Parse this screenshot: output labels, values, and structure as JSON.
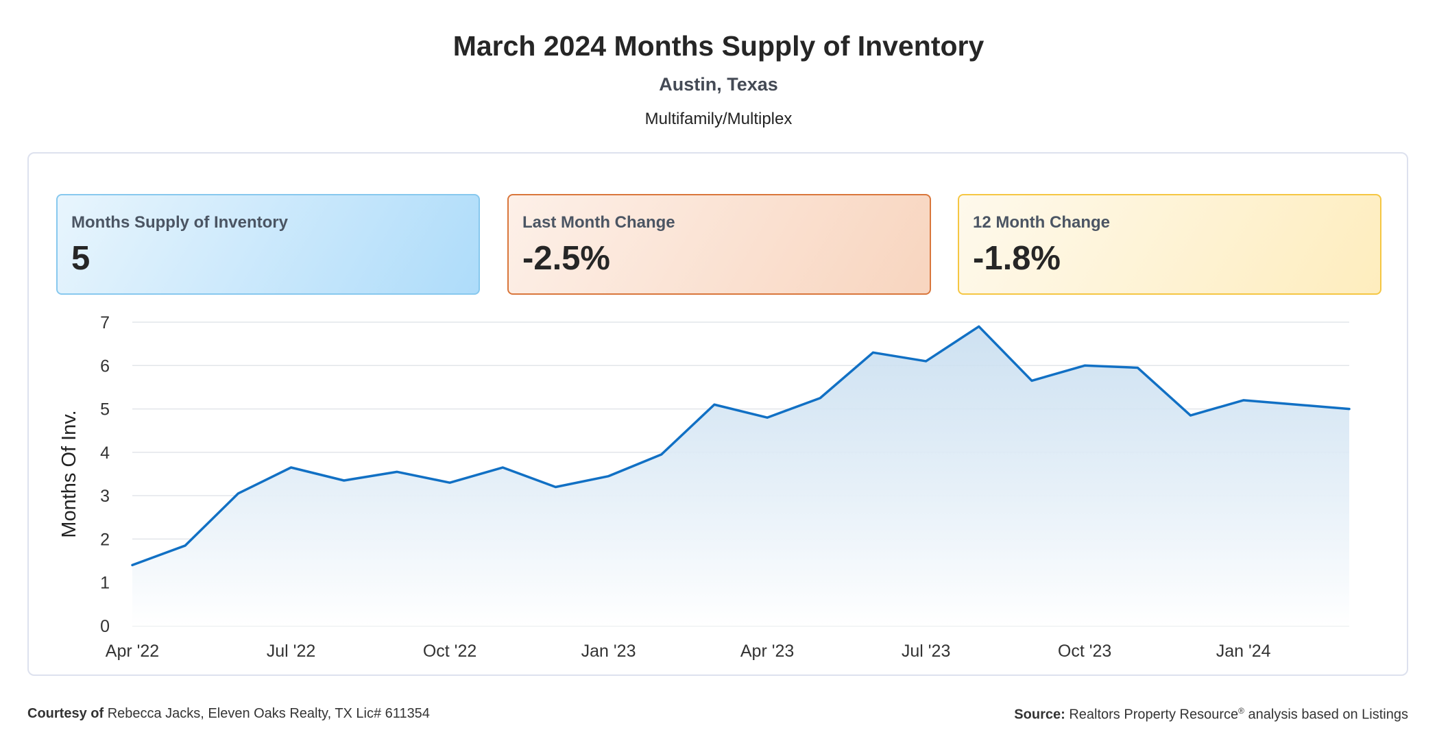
{
  "header": {
    "title": "March 2024 Months Supply of Inventory",
    "subtitle": "Austin, Texas",
    "category": "Multifamily/Multiplex"
  },
  "cards": [
    {
      "label": "Months Supply of Inventory",
      "value": "5"
    },
    {
      "label": "Last Month Change",
      "value": "-2.5%"
    },
    {
      "label": "12 Month Change",
      "value": "-1.8%"
    }
  ],
  "colors": {
    "line": "#1170c4",
    "grid": "#e2e5ea",
    "area_top": "#c5dcef",
    "area_bottom": "#ffffff"
  },
  "chart_data": {
    "type": "area",
    "title": "",
    "xlabel": "",
    "ylabel": "Months Of Inv.",
    "ylim": [
      0,
      7
    ],
    "yticks": [
      "0",
      "1",
      "2",
      "3",
      "4",
      "5",
      "6",
      "7"
    ],
    "grid": true,
    "x": [
      "Apr '22",
      "May '22",
      "Jun '22",
      "Jul '22",
      "Aug '22",
      "Sep '22",
      "Oct '22",
      "Nov '22",
      "Dec '22",
      "Jan '23",
      "Feb '23",
      "Mar '23",
      "Apr '23",
      "May '23",
      "Jun '23",
      "Jul '23",
      "Aug '23",
      "Sep '23",
      "Oct '23",
      "Nov '23",
      "Dec '23",
      "Jan '24",
      "Feb '24",
      "Mar '24"
    ],
    "xtick_labels": [
      "Apr '22",
      "Jul '22",
      "Oct '22",
      "Jan '23",
      "Apr '23",
      "Jul '23",
      "Oct '23",
      "Jan '24"
    ],
    "series": [
      {
        "values": [
          1.4,
          1.85,
          3.05,
          3.65,
          3.35,
          3.55,
          3.3,
          3.65,
          3.2,
          3.45,
          3.95,
          5.1,
          4.8,
          5.25,
          6.3,
          6.1,
          6.9,
          5.65,
          6.0,
          5.95,
          4.85,
          5.2,
          5.1,
          5.0
        ]
      }
    ]
  },
  "footer": {
    "courtesy_label": "Courtesy of",
    "courtesy_text": "Rebecca Jacks, Eleven Oaks Realty, TX Lic# 611354",
    "source_label": "Source:",
    "source_text": "Realtors Property Resource",
    "source_mark": "®",
    "source_suffix": "analysis based on Listings"
  }
}
